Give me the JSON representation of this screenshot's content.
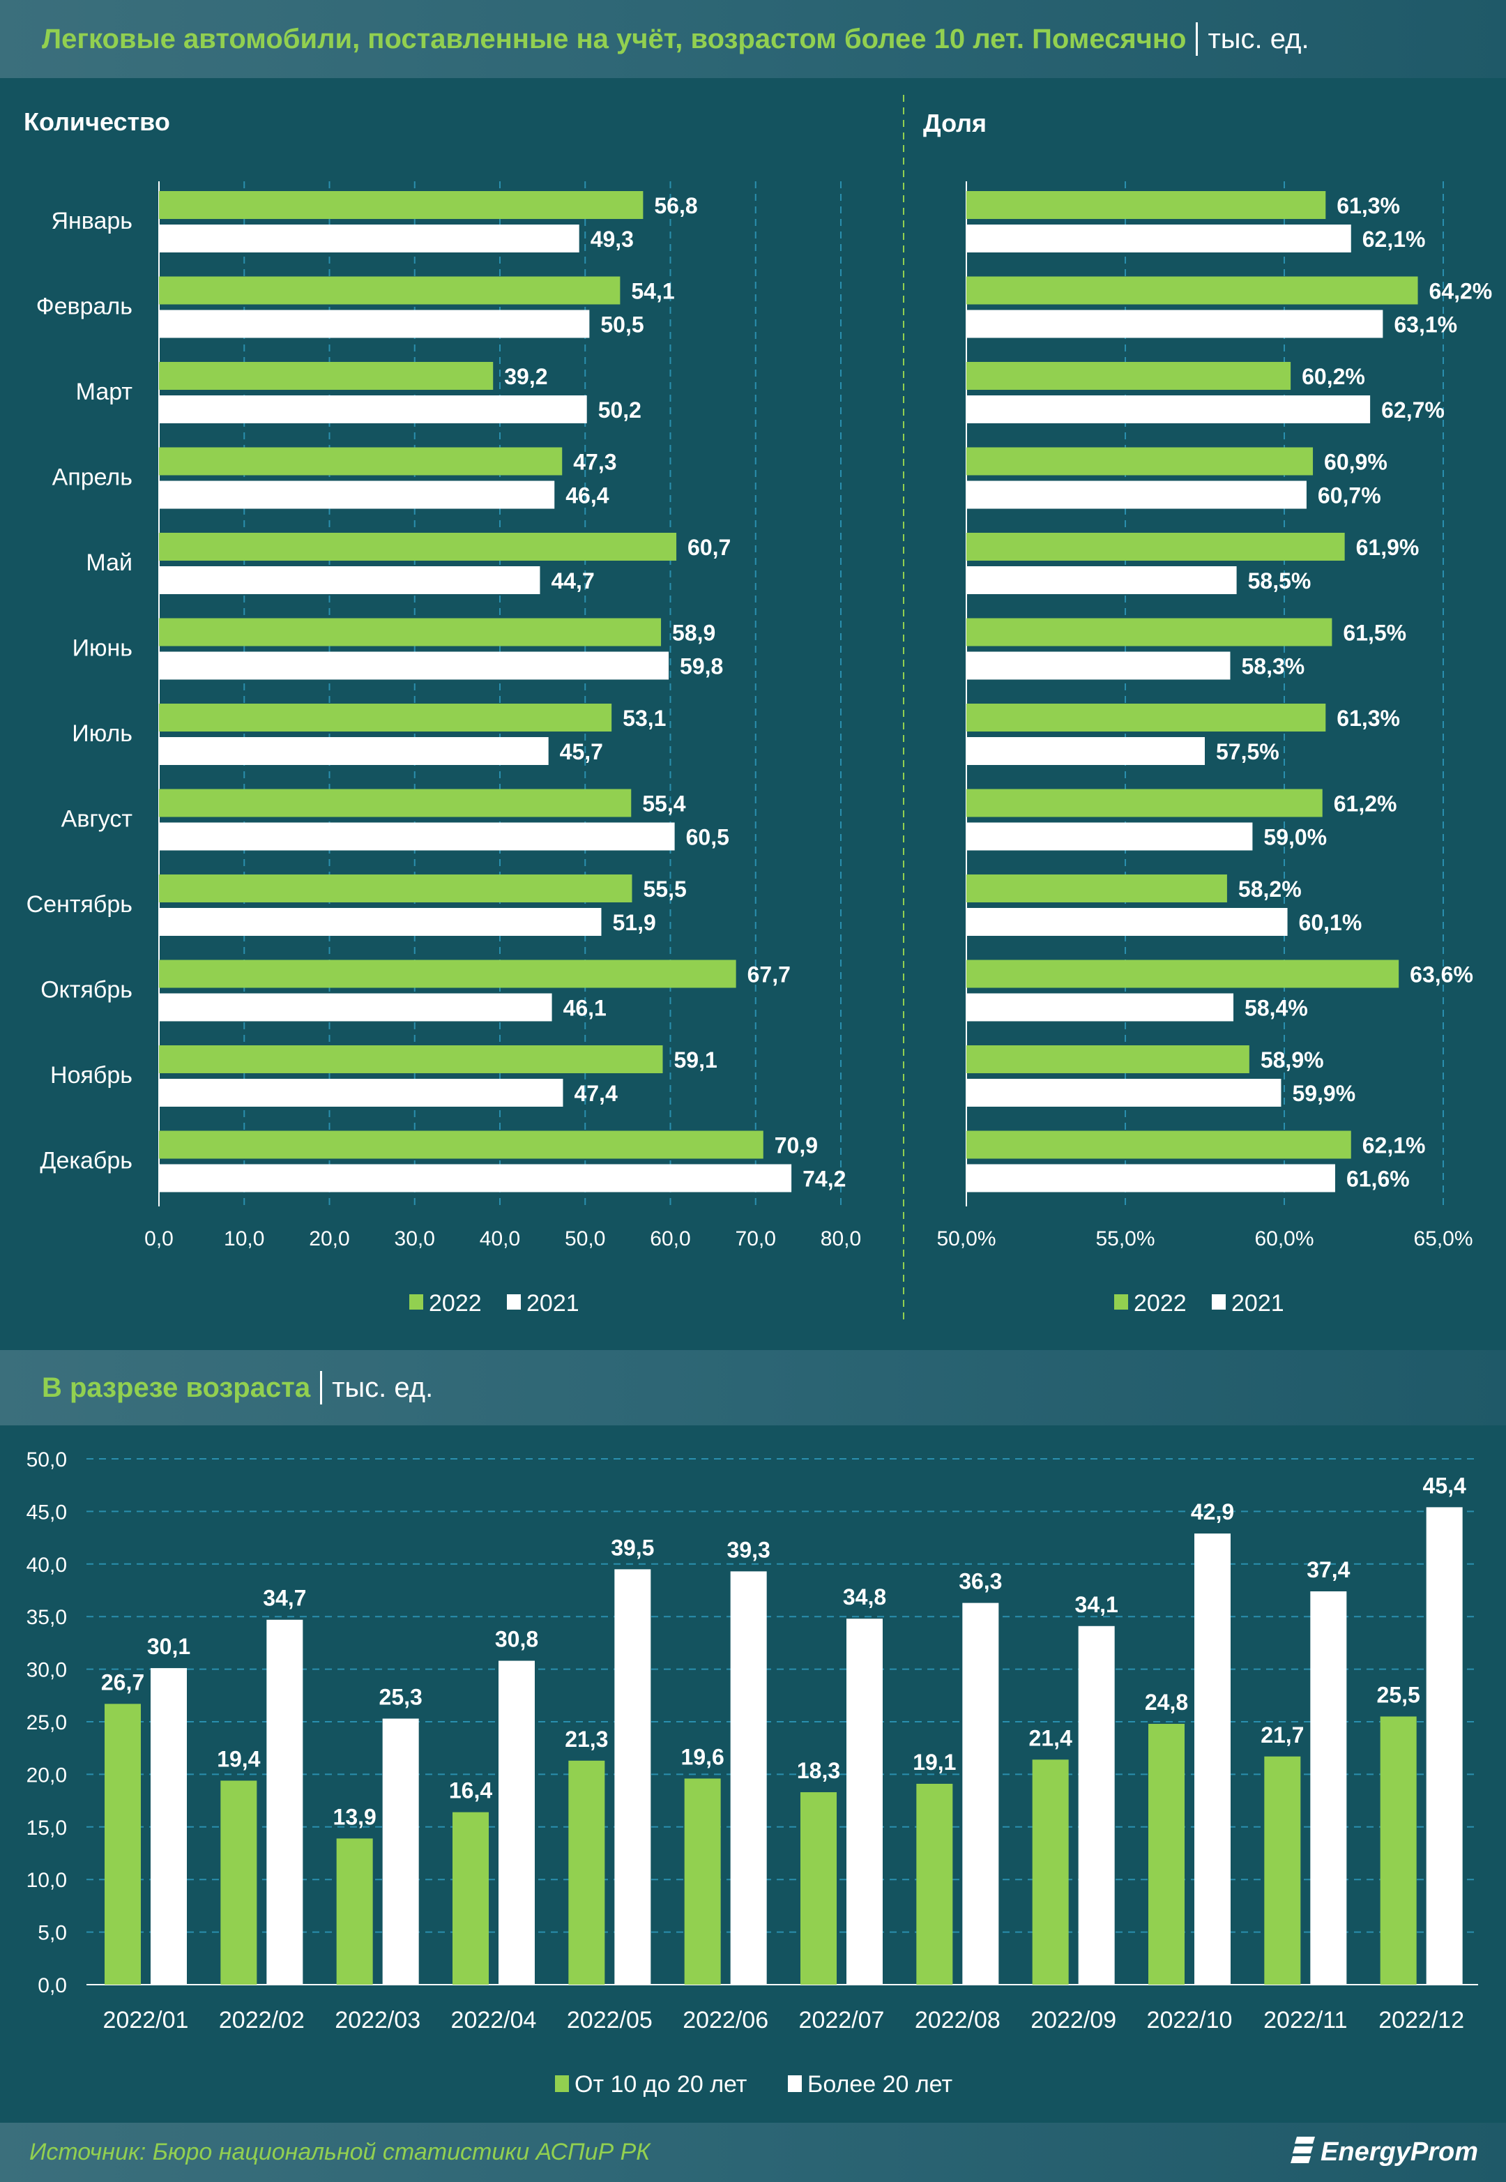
{
  "header": {
    "title": "Легковые автомобили, поставленные на учёт, возрастом более 10 лет. Помесячно",
    "unit": "тыс. ед."
  },
  "section2": {
    "title": "В разрезе возраста",
    "unit": "тыс. ед."
  },
  "footer": {
    "source": "Источник: Бюро национальной статистики АСПиР РК",
    "logo": "EnergyProm"
  },
  "colors": {
    "green": "#92d050",
    "white": "#ffffff",
    "background": "#14535f"
  },
  "chart_data": [
    {
      "type": "bar",
      "orientation": "horizontal",
      "title": "Количество",
      "categories": [
        "Январь",
        "Февраль",
        "Март",
        "Апрель",
        "Май",
        "Июнь",
        "Июль",
        "Август",
        "Сентябрь",
        "Октябрь",
        "Ноябрь",
        "Декабрь"
      ],
      "series": [
        {
          "name": "2022",
          "values": [
            56.8,
            54.1,
            39.2,
            47.3,
            60.7,
            58.9,
            53.1,
            55.4,
            55.5,
            67.7,
            59.1,
            70.9
          ],
          "labels": [
            "56,8",
            "54,1",
            "39,2",
            "47,3",
            "60,7",
            "58,9",
            "53,1",
            "55,4",
            "55,5",
            "67,7",
            "59,1",
            "70,9"
          ]
        },
        {
          "name": "2021",
          "values": [
            49.3,
            50.5,
            50.2,
            46.4,
            44.7,
            59.8,
            45.7,
            60.5,
            51.9,
            46.1,
            47.4,
            74.2
          ],
          "labels": [
            "49,3",
            "50,5",
            "50,2",
            "46,4",
            "44,7",
            "59,8",
            "45,7",
            "60,5",
            "51,9",
            "46,1",
            "47,4",
            "74,2"
          ]
        }
      ],
      "xlim": [
        0,
        80
      ],
      "ticks": [
        0,
        10,
        20,
        30,
        40,
        50,
        60,
        70,
        80
      ],
      "tick_labels": [
        "0,0",
        "10,0",
        "20,0",
        "30,0",
        "40,0",
        "50,0",
        "60,0",
        "70,0",
        "80,0"
      ],
      "legend": "bottom"
    },
    {
      "type": "bar",
      "orientation": "horizontal",
      "title": "Доля",
      "categories": [
        "Январь",
        "Февраль",
        "Март",
        "Апрель",
        "Май",
        "Июнь",
        "Июль",
        "Август",
        "Сентябрь",
        "Октябрь",
        "Ноябрь",
        "Декабрь"
      ],
      "series": [
        {
          "name": "2022",
          "values": [
            61.3,
            64.2,
            60.2,
            60.9,
            61.9,
            61.5,
            61.3,
            61.2,
            58.2,
            63.6,
            58.9,
            62.1
          ],
          "labels": [
            "61,3%",
            "64,2%",
            "60,2%",
            "60,9%",
            "61,9%",
            "61,5%",
            "61,3%",
            "61,2%",
            "58,2%",
            "63,6%",
            "58,9%",
            "62,1%"
          ]
        },
        {
          "name": "2021",
          "values": [
            62.1,
            63.1,
            62.7,
            60.7,
            58.5,
            58.3,
            57.5,
            59.0,
            60.1,
            58.4,
            59.9,
            61.6
          ],
          "labels": [
            "62,1%",
            "63,1%",
            "62,7%",
            "60,7%",
            "58,5%",
            "58,3%",
            "57,5%",
            "59,0%",
            "60,1%",
            "58,4%",
            "59,9%",
            "61,6%"
          ]
        }
      ],
      "xlim": [
        50,
        65
      ],
      "ticks": [
        50,
        55,
        60,
        65
      ],
      "tick_labels": [
        "50,0%",
        "55,0%",
        "60,0%",
        "65,0%"
      ],
      "legend": "bottom"
    },
    {
      "type": "bar",
      "orientation": "vertical",
      "title": "В разрезе возраста",
      "categories": [
        "2022/01",
        "2022/02",
        "2022/03",
        "2022/04",
        "2022/05",
        "2022/06",
        "2022/07",
        "2022/08",
        "2022/09",
        "2022/10",
        "2022/11",
        "2022/12"
      ],
      "series": [
        {
          "name": "От 10 до 20 лет",
          "values": [
            26.7,
            19.4,
            13.9,
            16.4,
            21.3,
            19.6,
            18.3,
            19.1,
            21.4,
            24.8,
            21.7,
            25.5
          ],
          "labels": [
            "26,7",
            "19,4",
            "13,9",
            "16,4",
            "21,3",
            "19,6",
            "18,3",
            "19,1",
            "21,4",
            "24,8",
            "21,7",
            "25,5"
          ]
        },
        {
          "name": "Более 20 лет",
          "values": [
            30.1,
            34.7,
            25.3,
            30.8,
            39.5,
            39.3,
            34.8,
            36.3,
            34.1,
            42.9,
            37.4,
            45.4
          ],
          "labels": [
            "30,1",
            "34,7",
            "25,3",
            "30,8",
            "39,5",
            "39,3",
            "34,8",
            "36,3",
            "34,1",
            "42,9",
            "37,4",
            "45,4"
          ]
        }
      ],
      "ylim": [
        0,
        50
      ],
      "ticks": [
        0,
        5,
        10,
        15,
        20,
        25,
        30,
        35,
        40,
        45,
        50
      ],
      "tick_labels": [
        "0,0",
        "5,0",
        "10,0",
        "15,0",
        "20,0",
        "25,0",
        "30,0",
        "35,0",
        "40,0",
        "45,0",
        "50,0"
      ],
      "legend": "bottom"
    }
  ]
}
